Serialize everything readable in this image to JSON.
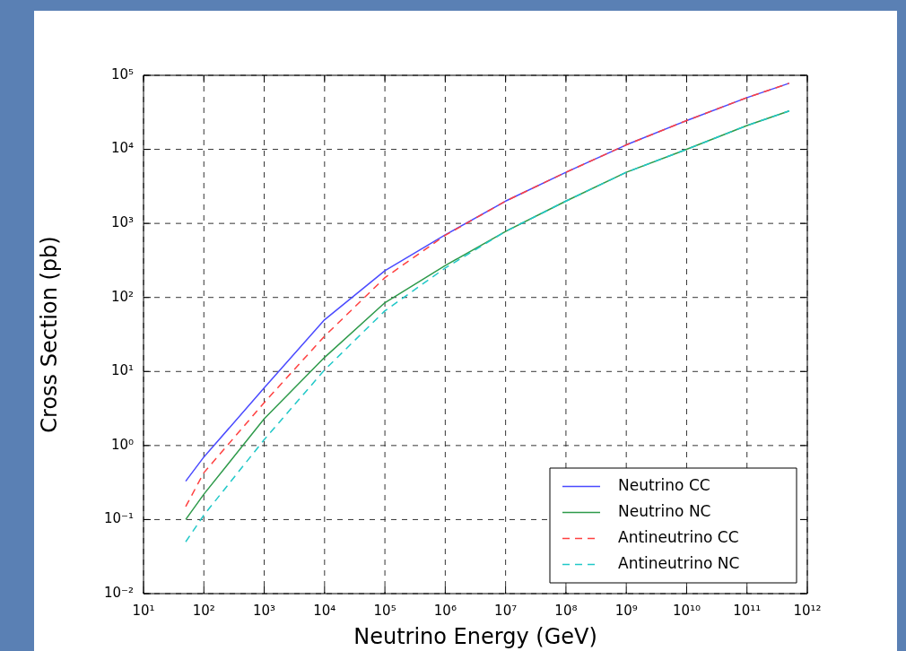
{
  "chart_data": {
    "type": "line",
    "xlabel": "Neutrino Energy (GeV)",
    "ylabel": "Cross Section (pb)",
    "log": "xy",
    "grid": true,
    "legend": "bottom right",
    "marker": "none",
    "x": [
      50,
      100,
      1000,
      10000,
      100000,
      1000000,
      10000000,
      100000000,
      1000000000,
      10000000000,
      100000000000,
      500000000000
    ],
    "xlim": [
      10,
      1000000000000
    ],
    "xticks": [
      {
        "value": 10,
        "label": "10¹"
      },
      {
        "value": 100,
        "label": "10²"
      },
      {
        "value": 1000,
        "label": "10³"
      },
      {
        "value": 10000,
        "label": "10⁴"
      },
      {
        "value": 100000,
        "label": "10⁵"
      },
      {
        "value": 1000000,
        "label": "10⁶"
      },
      {
        "value": 10000000,
        "label": "10⁷"
      },
      {
        "value": 100000000,
        "label": "10⁸"
      },
      {
        "value": 1000000000,
        "label": "10⁹"
      },
      {
        "value": 10000000000,
        "label": "10¹⁰"
      },
      {
        "value": 100000000000,
        "label": "10¹¹"
      },
      {
        "value": 1000000000000,
        "label": "10¹²"
      }
    ],
    "ylim": [
      0.01,
      100000
    ],
    "yticks": [
      {
        "value": 0.01,
        "label": "10⁻²"
      },
      {
        "value": 0.1,
        "label": "10⁻¹"
      },
      {
        "value": 1,
        "label": "10⁰"
      },
      {
        "value": 10,
        "label": "10¹"
      },
      {
        "value": 100,
        "label": "10²"
      },
      {
        "value": 1000,
        "label": "10³"
      },
      {
        "value": 10000,
        "label": "10⁴"
      },
      {
        "value": 100000,
        "label": "10⁵"
      }
    ],
    "series": [
      {
        "name": "Neutrino CC",
        "color": "#4a4aff",
        "line_style": "solid",
        "values": [
          0.33,
          0.7,
          6,
          50,
          230,
          700,
          2000,
          4900,
          11500,
          24500,
          50000,
          78000
        ]
      },
      {
        "name": "Neutrino NC",
        "color": "#2e9a4a",
        "line_style": "solid",
        "values": [
          0.1,
          0.22,
          2.3,
          15.5,
          85,
          270,
          780,
          2000,
          4900,
          10000,
          21000,
          33000
        ]
      },
      {
        "name": "Antineutrino CC",
        "color": "#ff4040",
        "line_style": "dashed",
        "values": [
          0.15,
          0.43,
          3.8,
          30,
          185,
          690,
          2000,
          4900,
          11500,
          24500,
          50000,
          78000
        ]
      },
      {
        "name": "Antineutrino NC",
        "color": "#20c8c8",
        "line_style": "dashed",
        "values": [
          0.05,
          0.115,
          1.2,
          10.5,
          66,
          250,
          780,
          2000,
          4900,
          10000,
          21000,
          33000
        ]
      }
    ]
  }
}
